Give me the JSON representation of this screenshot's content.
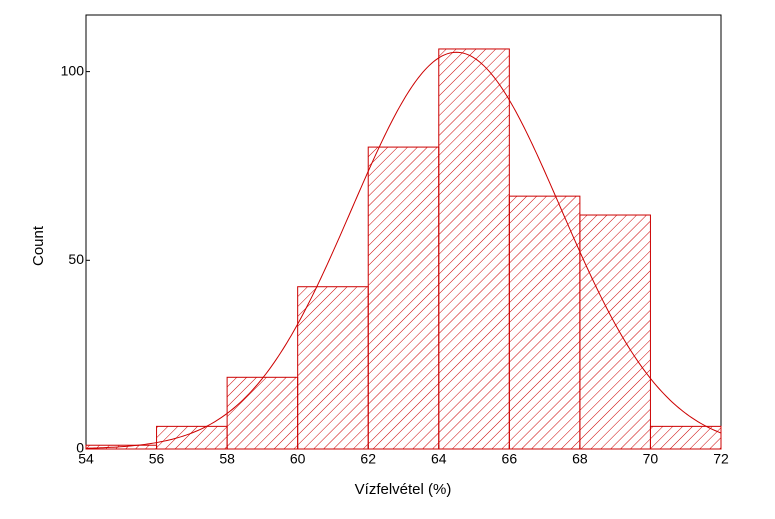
{
  "chart_data": {
    "type": "histogram",
    "x_label": "Vízfelvétel (%)",
    "y_label": "Count",
    "bins": [
      54,
      56,
      58,
      60,
      62,
      64,
      66,
      68,
      70,
      72
    ],
    "values": [
      1,
      6,
      19,
      43,
      80,
      106,
      67,
      62,
      6
    ],
    "color": "#cc0000",
    "normal_curve": {
      "mean": 64.5,
      "sd": 2.96
    },
    "xlim": [
      54,
      72
    ],
    "xticks": [
      54,
      56,
      58,
      60,
      62,
      64,
      66,
      68,
      70,
      72
    ],
    "ylim": [
      0,
      115
    ],
    "yticks": [
      0,
      50,
      100
    ]
  }
}
